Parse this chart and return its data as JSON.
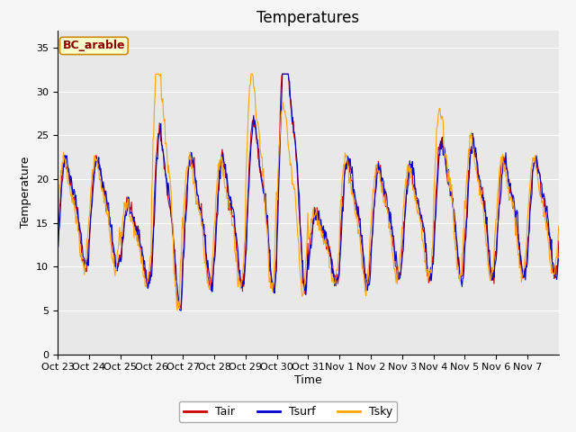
{
  "title": "Temperatures",
  "xlabel": "Time",
  "ylabel": "Temperature",
  "annotation": "BC_arable",
  "ylim": [
    0,
    37
  ],
  "yticks": [
    0,
    5,
    10,
    15,
    20,
    25,
    30,
    35
  ],
  "xtick_labels": [
    "Oct 23",
    "Oct 24",
    "Oct 25",
    "Oct 26",
    "Oct 27",
    "Oct 28",
    "Oct 29",
    "Oct 30",
    "Oct 31",
    "Nov 1",
    "Nov 2",
    "Nov 3",
    "Nov 4",
    "Nov 5",
    "Nov 6",
    "Nov 7"
  ],
  "legend_entries": [
    "Tair",
    "Tsurf",
    "Tsky"
  ],
  "line_colors": [
    "#cc0000",
    "#0000cc",
    "#ffa500"
  ],
  "background_color": "#e8e8e8",
  "fig_background": "#f5f5f5",
  "title_fontsize": 12,
  "axis_label_fontsize": 9,
  "tick_fontsize": 8,
  "legend_fontsize": 9,
  "annotation_fontsize": 9,
  "annotation_color": "#8b0000",
  "annotation_bg": "#ffffcc",
  "annotation_border": "#cc8800",
  "n_points_per_day": 48,
  "n_days": 16
}
